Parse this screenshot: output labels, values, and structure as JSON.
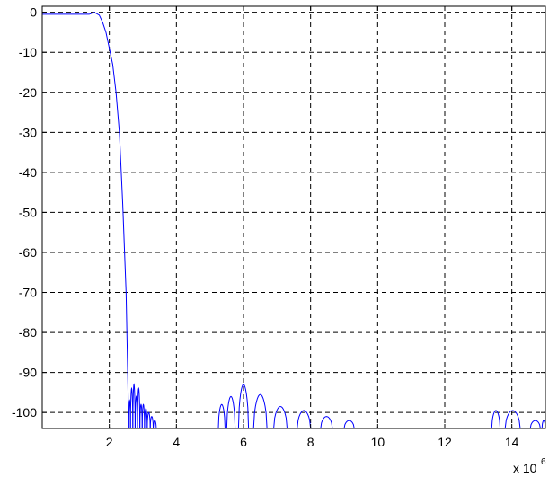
{
  "chart_data": {
    "type": "line",
    "title": "",
    "xlabel": "",
    "ylabel": "",
    "x_multiplier_label": "x 10",
    "x_multiplier_exponent": "6",
    "xlim": [
      0,
      15
    ],
    "ylim": [
      -104,
      1.5
    ],
    "x_ticks": [
      2,
      4,
      6,
      8,
      10,
      12,
      14
    ],
    "y_ticks": [
      0,
      -10,
      -20,
      -30,
      -40,
      -50,
      -60,
      -70,
      -80,
      -90,
      -100
    ],
    "x_tick_labels": [
      "2",
      "4",
      "6",
      "8",
      "10",
      "12",
      "14"
    ],
    "y_tick_labels": [
      "0",
      "-10",
      "-20",
      "-30",
      "-40",
      "-50",
      "-60",
      "-70",
      "-80",
      "-90",
      "-100"
    ],
    "grid": true,
    "grid_style": "dashed",
    "line_color": "#0000ff",
    "series": [
      {
        "passband": [
          [
            0,
            -0.5
          ],
          [
            1.0,
            -0.5
          ],
          [
            1.4,
            -0.5
          ],
          [
            1.55,
            0
          ],
          [
            1.7,
            -0.7
          ],
          [
            1.8,
            -2.5
          ],
          [
            1.9,
            -5
          ],
          [
            2.0,
            -9
          ],
          [
            2.1,
            -13
          ],
          [
            2.2,
            -20
          ],
          [
            2.3,
            -30
          ],
          [
            2.4,
            -48
          ],
          [
            2.5,
            -70
          ],
          [
            2.58,
            -104
          ]
        ],
        "lobes": [
          [
            2.58,
            2.63,
            -97
          ],
          [
            2.63,
            2.7,
            -94
          ],
          [
            2.7,
            2.77,
            -93
          ],
          [
            2.77,
            2.84,
            -96
          ],
          [
            2.84,
            2.91,
            -94
          ],
          [
            2.91,
            2.98,
            -98
          ],
          [
            2.98,
            3.05,
            -98
          ],
          [
            3.05,
            3.13,
            -99
          ],
          [
            3.13,
            3.22,
            -100
          ],
          [
            3.22,
            3.31,
            -101
          ],
          [
            3.31,
            3.4,
            -102
          ],
          [
            5.25,
            5.45,
            -98
          ],
          [
            5.5,
            5.75,
            -96
          ],
          [
            5.85,
            6.15,
            -93
          ],
          [
            6.3,
            6.7,
            -95.5
          ],
          [
            6.9,
            7.3,
            -98.5
          ],
          [
            7.6,
            8.0,
            -99.5
          ],
          [
            8.3,
            8.65,
            -101
          ],
          [
            9.0,
            9.3,
            -102
          ],
          [
            13.4,
            13.65,
            -99.5
          ],
          [
            13.8,
            14.25,
            -99.5
          ],
          [
            14.55,
            14.85,
            -102
          ],
          [
            14.9,
            15.0,
            -102
          ]
        ]
      }
    ]
  }
}
